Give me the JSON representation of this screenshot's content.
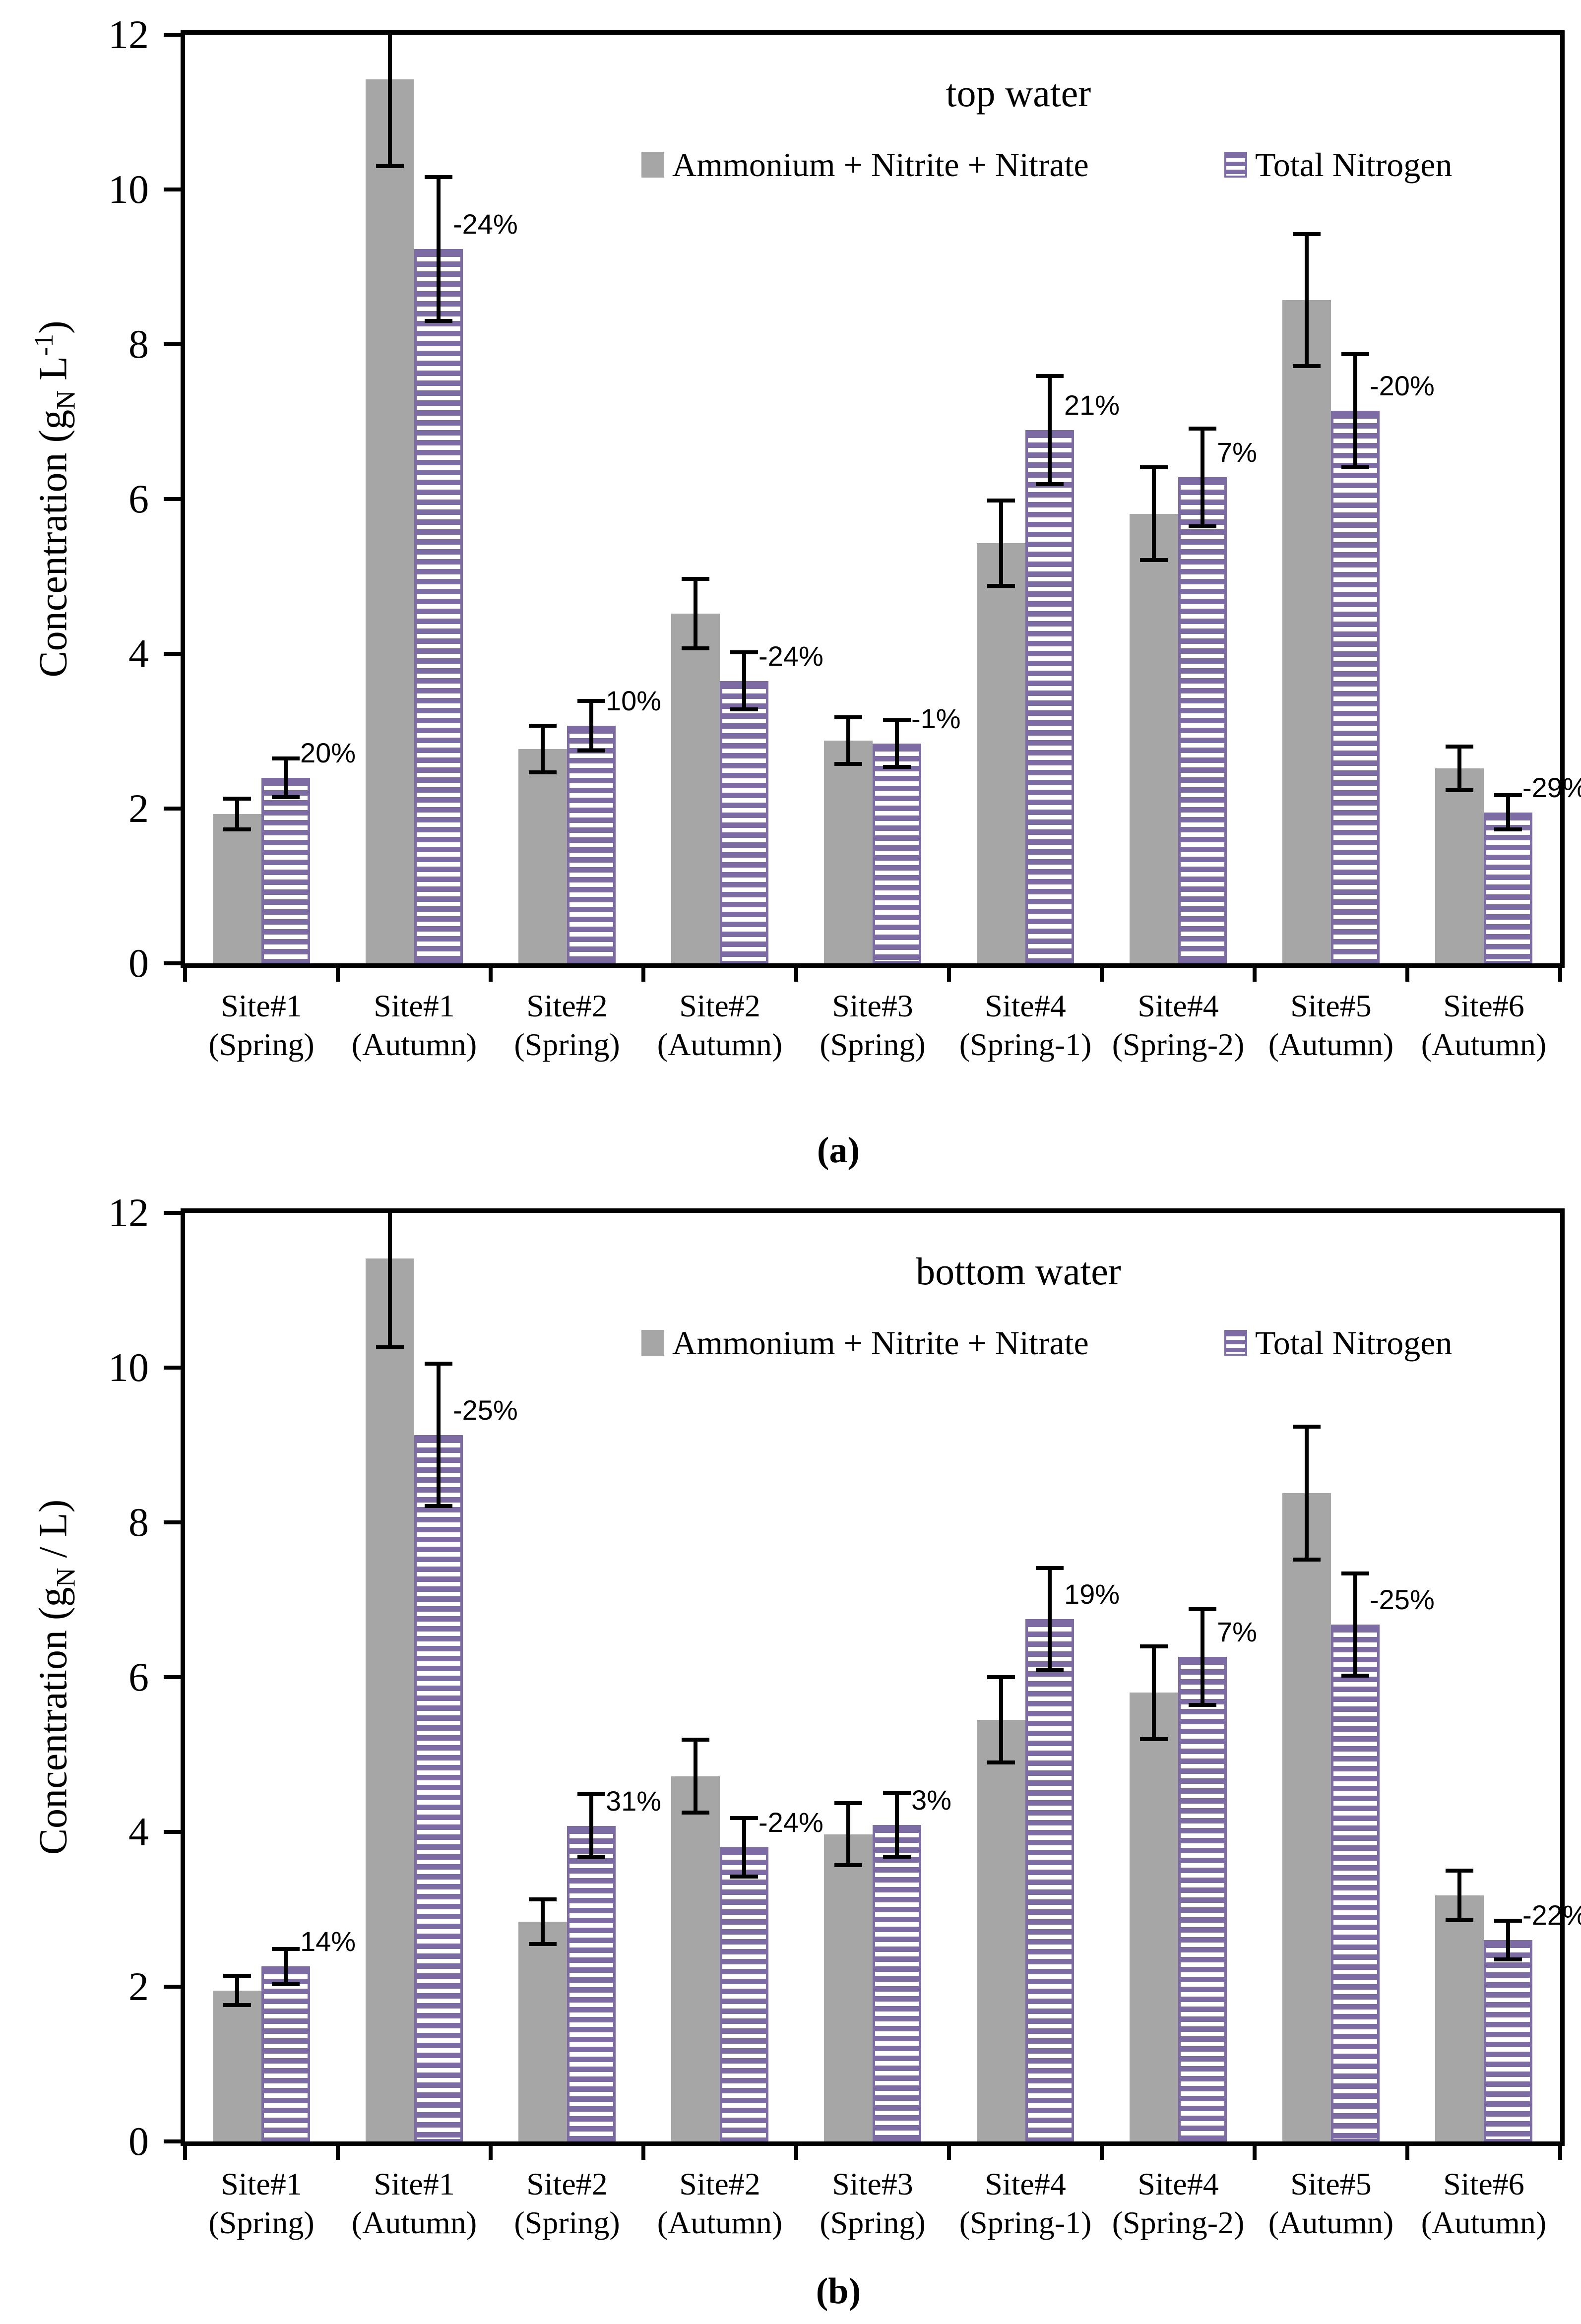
{
  "figure": {
    "caption_a": "(a)",
    "caption_b": "(b)",
    "colors": {
      "bar_gray": "#A6A6A6",
      "bar_purple": "#7D6BA4",
      "axis": "#000000"
    }
  },
  "chart_data": [
    {
      "type": "bar",
      "title": "top water",
      "ylabel": {
        "pre": "Concentration  (g",
        "sub": "N",
        "mid": " L",
        "sup": "-1",
        "post": ")"
      },
      "ylim": [
        0,
        12
      ],
      "yticks": [
        0,
        2,
        4,
        6,
        8,
        10,
        12
      ],
      "grid": false,
      "legend_position": "inside-top",
      "categories_line1": [
        "Site#1",
        "Site#1",
        "Site#2",
        "Site#2",
        "Site#3",
        "Site#4",
        "Site#4",
        "Site#5",
        "Site#6"
      ],
      "categories_line2": [
        "(Spring)",
        "(Autumn)",
        "(Spring)",
        "(Autumn)",
        "(Spring)",
        "(Spring-1)",
        "(Spring-2)",
        "(Autumn)",
        "(Autumn)"
      ],
      "series": [
        {
          "name": "Ammonium + Nitrite + Nitrate",
          "values": [
            1.93,
            11.42,
            2.77,
            4.52,
            2.88,
            5.43,
            5.81,
            8.57,
            2.52
          ],
          "errors": [
            0.2,
            1.12,
            0.3,
            0.45,
            0.3,
            0.55,
            0.6,
            0.85,
            0.28
          ]
        },
        {
          "name": "Total Nitrogen",
          "values": [
            2.4,
            9.23,
            3.07,
            3.65,
            2.84,
            6.89,
            6.28,
            7.14,
            1.95
          ],
          "errors": [
            0.25,
            0.93,
            0.32,
            0.37,
            0.3,
            0.7,
            0.63,
            0.73,
            0.22
          ]
        }
      ],
      "pct_labels": [
        "20%",
        "-24%",
        "10%",
        "-24%",
        "-1%",
        "21%",
        "7%",
        "-20%",
        "-29%"
      ]
    },
    {
      "type": "bar",
      "title": "bottom water",
      "ylabel": {
        "pre": "Concentration  (g",
        "sub": "N",
        "mid": " / L",
        "sup": "",
        "post": ")"
      },
      "ylim": [
        0,
        12
      ],
      "yticks": [
        0,
        2,
        4,
        6,
        8,
        10,
        12
      ],
      "grid": false,
      "legend_position": "inside-top",
      "categories_line1": [
        "Site#1",
        "Site#1",
        "Site#2",
        "Site#2",
        "Site#3",
        "Site#4",
        "Site#4",
        "Site#5",
        "Site#6"
      ],
      "categories_line2": [
        "(Spring)",
        "(Autumn)",
        "(Spring)",
        "(Autumn)",
        "(Spring)",
        "(Spring-1)",
        "(Spring-2)",
        "(Autumn)",
        "(Autumn)"
      ],
      "series": [
        {
          "name": "Ammonium + Nitrite + Nitrate",
          "values": [
            1.95,
            11.41,
            2.84,
            4.72,
            3.97,
            5.45,
            5.8,
            8.38,
            3.18
          ],
          "errors": [
            0.19,
            1.15,
            0.29,
            0.47,
            0.4,
            0.55,
            0.6,
            0.86,
            0.32
          ]
        },
        {
          "name": "Total Nitrogen",
          "values": [
            2.26,
            9.13,
            4.08,
            3.8,
            4.09,
            6.75,
            6.26,
            6.68,
            2.6
          ],
          "errors": [
            0.23,
            0.92,
            0.41,
            0.38,
            0.41,
            0.66,
            0.62,
            0.66,
            0.25
          ]
        }
      ],
      "pct_labels": [
        "14%",
        "-25%",
        "31%",
        "-24%",
        "3%",
        "19%",
        "7%",
        "-25%",
        "-22%"
      ]
    }
  ]
}
